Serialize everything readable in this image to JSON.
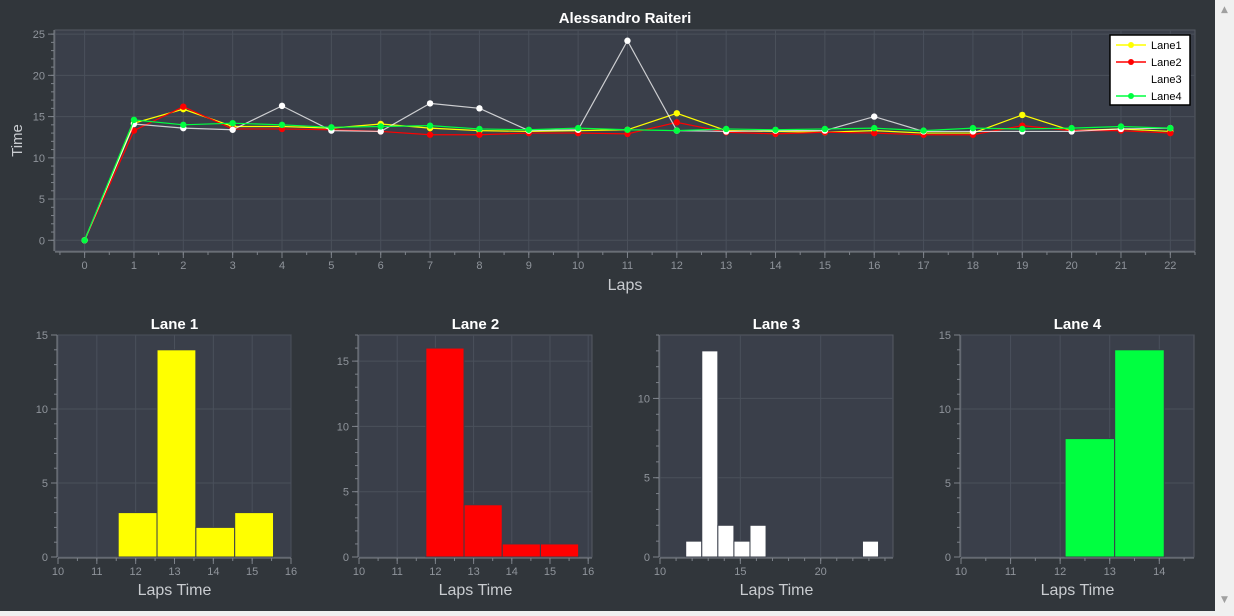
{
  "chart_data": [
    {
      "type": "line",
      "title": "Alessandro Raiteri",
      "xlabel": "Laps",
      "ylabel": "Time",
      "xlim": [
        -0.6,
        22.5
      ],
      "ylim": [
        -1.3,
        25.5
      ],
      "xticks": [
        0,
        1,
        2,
        3,
        4,
        5,
        6,
        7,
        8,
        9,
        10,
        11,
        12,
        13,
        14,
        15,
        16,
        17,
        18,
        19,
        20,
        21,
        22
      ],
      "yticks": [
        0,
        5,
        10,
        15,
        20,
        25
      ],
      "grid": true,
      "legend": "top-right",
      "x": [
        0,
        1,
        2,
        3,
        4,
        5,
        6,
        7,
        8,
        9,
        10,
        11,
        12,
        13,
        14,
        15,
        16,
        17,
        18,
        19,
        20,
        21,
        22
      ],
      "series": [
        {
          "name": "Lane1",
          "color": "#ffff00",
          "values": [
            0,
            14.2,
            15.9,
            13.8,
            13.8,
            13.6,
            14.1,
            13.6,
            13.3,
            13.2,
            13.3,
            13.4,
            15.4,
            13.3,
            13.2,
            13.1,
            13.3,
            13.0,
            13.0,
            15.2,
            13.3,
            13.5,
            13.2
          ]
        },
        {
          "name": "Lane2",
          "color": "#ff0000",
          "values": [
            0,
            13.3,
            16.2,
            13.5,
            13.5,
            13.4,
            13.2,
            12.8,
            12.8,
            13.0,
            13.0,
            12.9,
            14.3,
            13.1,
            12.9,
            13.1,
            13.0,
            12.8,
            12.8,
            13.9,
            13.3,
            13.3,
            13.0
          ]
        },
        {
          "name": "Lane3",
          "color": "#ffffff",
          "values": [
            0,
            14.1,
            13.6,
            13.4,
            16.3,
            13.3,
            13.2,
            16.6,
            16.0,
            13.3,
            13.4,
            24.2,
            13.3,
            13.2,
            13.3,
            13.3,
            15.0,
            13.2,
            13.2,
            13.2,
            13.2,
            13.5,
            13.6
          ]
        },
        {
          "name": "Lane4",
          "color": "#00ff40",
          "values": [
            0,
            14.6,
            14.0,
            14.2,
            14.0,
            13.7,
            13.8,
            13.9,
            13.5,
            13.4,
            13.6,
            13.4,
            13.3,
            13.5,
            13.4,
            13.5,
            13.6,
            13.3,
            13.6,
            13.5,
            13.6,
            13.8,
            13.6
          ]
        }
      ]
    },
    {
      "type": "bar",
      "title": "Lane 1",
      "xlabel": "Laps Time",
      "color": "#ffff00",
      "xlim": [
        10,
        16
      ],
      "ylim": [
        0,
        15
      ],
      "xticks": [
        10,
        11,
        12,
        13,
        14,
        15,
        16
      ],
      "yticks": [
        0,
        5,
        10,
        15
      ],
      "bins": [
        {
          "start": 11.55,
          "end": 12.55,
          "count": 3
        },
        {
          "start": 12.55,
          "end": 13.55,
          "count": 14
        },
        {
          "start": 13.55,
          "end": 14.55,
          "count": 2
        },
        {
          "start": 14.55,
          "end": 15.55,
          "count": 3
        }
      ]
    },
    {
      "type": "bar",
      "title": "Lane 2",
      "xlabel": "Laps Time",
      "color": "#ff0000",
      "xlim": [
        10,
        16.1
      ],
      "ylim": [
        0,
        17
      ],
      "xticks": [
        10,
        11,
        12,
        13,
        14,
        15,
        16
      ],
      "yticks": [
        0,
        5,
        10,
        15
      ],
      "bins": [
        {
          "start": 11.75,
          "end": 12.75,
          "count": 16
        },
        {
          "start": 12.75,
          "end": 13.75,
          "count": 4
        },
        {
          "start": 13.75,
          "end": 14.75,
          "count": 1
        },
        {
          "start": 14.75,
          "end": 15.75,
          "count": 1
        }
      ]
    },
    {
      "type": "bar",
      "title": "Lane 3",
      "xlabel": "Laps Time",
      "color": "#ffffff",
      "xlim": [
        10,
        24.5
      ],
      "ylim": [
        0,
        14
      ],
      "xticks": [
        10,
        15,
        20
      ],
      "yticks": [
        0,
        5,
        10
      ],
      "bins": [
        {
          "start": 11.6,
          "end": 12.6,
          "count": 1
        },
        {
          "start": 12.6,
          "end": 13.6,
          "count": 13
        },
        {
          "start": 13.6,
          "end": 14.6,
          "count": 2
        },
        {
          "start": 14.6,
          "end": 15.6,
          "count": 1
        },
        {
          "start": 15.6,
          "end": 16.6,
          "count": 2
        },
        {
          "start": 22.6,
          "end": 23.6,
          "count": 1
        }
      ]
    },
    {
      "type": "bar",
      "title": "Lane 4",
      "xlabel": "Laps Time",
      "color": "#00ff40",
      "xlim": [
        10,
        14.7
      ],
      "ylim": [
        0,
        15
      ],
      "xticks": [
        10,
        11,
        12,
        13,
        14
      ],
      "yticks": [
        0,
        5,
        10,
        15
      ],
      "bins": [
        {
          "start": 12.1,
          "end": 13.1,
          "count": 8
        },
        {
          "start": 13.1,
          "end": 14.1,
          "count": 14
        }
      ]
    }
  ],
  "scrollbar": {
    "up_icon": "▲",
    "down_icon": "▼"
  }
}
